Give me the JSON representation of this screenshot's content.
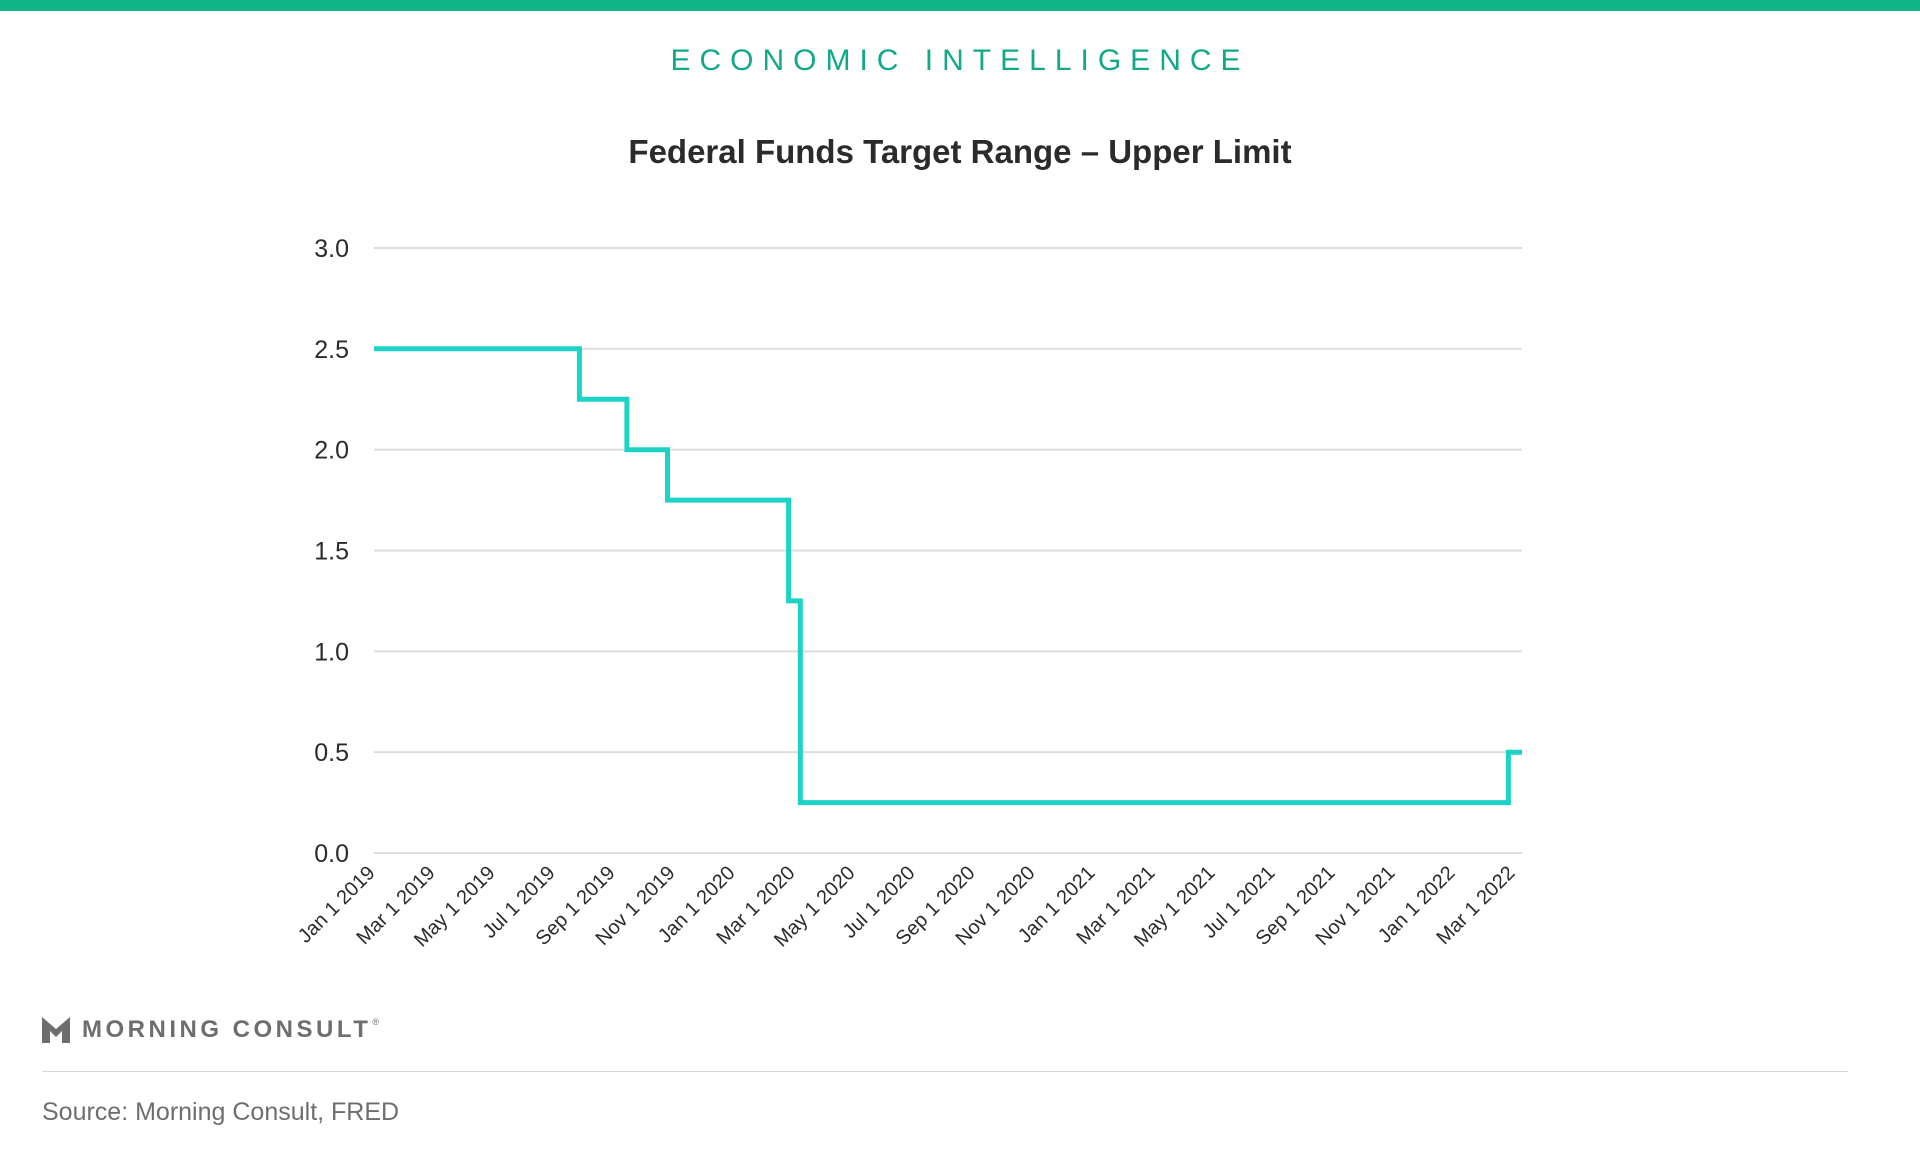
{
  "header": {
    "section_label": "ECONOMIC INTELLIGENCE"
  },
  "brand": {
    "name": "MORNING CONSULT",
    "registered_mark": "®",
    "logo_icon": "morning-consult-m-icon"
  },
  "footer": {
    "source": "Source: Morning Consult, FRED"
  },
  "colors": {
    "accent_bar": "#12b48a",
    "section_label": "#12a987",
    "line": "#1dd3c6",
    "gridline": "#dddddd",
    "text": "#2b2b2b",
    "muted_text": "#6e6e6e"
  },
  "chart_data": {
    "type": "line",
    "title": "Federal Funds Target Range – Upper Limit",
    "xlabel": "",
    "ylabel": "",
    "ylim": [
      0,
      3
    ],
    "yticks": [
      "0.0",
      "0.5",
      "1.0",
      "1.5",
      "2.0",
      "2.5",
      "3.0"
    ],
    "grid": true,
    "legend": "none",
    "step": true,
    "x_tick_labels": [
      "Jan 1 2019",
      "Mar 1 2019",
      "May 1 2019",
      "Jul 1 2019",
      "Sep 1 2019",
      "Nov 1 2019",
      "Jan 1 2020",
      "Mar 1 2020",
      "May 1 2020",
      "Jul 1 2020",
      "Sep 1 2020",
      "Nov 1 2020",
      "Jan 1 2021",
      "Mar 1 2021",
      "May 1 2021",
      "Jul 1 2021",
      "Sep 1 2021",
      "Nov 1 2021",
      "Jan 1 2022",
      "Mar 1 2022"
    ],
    "x_range": [
      "2019-01-01",
      "2022-03-31"
    ],
    "series": [
      {
        "points": [
          {
            "x": "2019-01-01",
            "y": 2.5
          },
          {
            "x": "2019-08-01",
            "y": 2.25
          },
          {
            "x": "2019-09-19",
            "y": 2.0
          },
          {
            "x": "2019-10-31",
            "y": 1.75
          },
          {
            "x": "2020-03-04",
            "y": 1.25
          },
          {
            "x": "2020-03-16",
            "y": 0.25
          },
          {
            "x": "2022-03-17",
            "y": 0.5
          },
          {
            "x": "2022-03-31",
            "y": 0.5
          }
        ]
      }
    ]
  }
}
